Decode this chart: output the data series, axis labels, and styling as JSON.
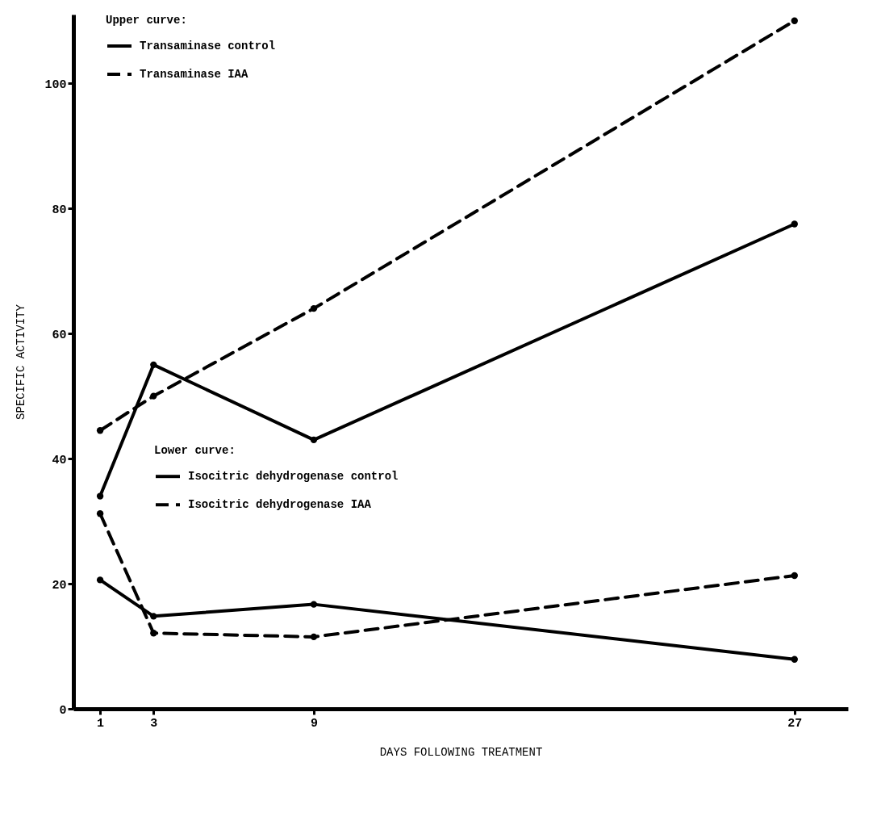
{
  "chart_data": {
    "type": "line",
    "xlabel": "DAYS FOLLOWING TREATMENT",
    "ylabel": "SPECIFIC ACTIVITY",
    "x": [
      1,
      3,
      9,
      27
    ],
    "xlim": [
      0,
      29
    ],
    "xticks": [
      1,
      3,
      9,
      27
    ],
    "ylim": [
      0,
      111
    ],
    "yticks": [
      0,
      20,
      40,
      60,
      80,
      100
    ],
    "grid": false,
    "legend": "top left",
    "marker": "circle",
    "annotations": [
      "Upper curve:",
      "Lower curve:"
    ],
    "series": [
      {
        "name": "Transaminase control",
        "color": "#000000",
        "line_style": "solid",
        "values": [
          34,
          55,
          43,
          77.5
        ]
      },
      {
        "name": "Transaminase IAA",
        "color": "#000000",
        "line_style": "dashed",
        "values": [
          44.5,
          50,
          64,
          110
        ]
      },
      {
        "name": "Isocitric dehydrogenase control",
        "color": "#000000",
        "line_style": "solid",
        "values": [
          20.6,
          14.8,
          16.7,
          7.9
        ]
      },
      {
        "name": "Isocitric dehydrogenase IAA",
        "color": "#000000",
        "line_style": "dashed",
        "values": [
          31.2,
          12.1,
          11.5,
          21.3
        ]
      }
    ]
  }
}
